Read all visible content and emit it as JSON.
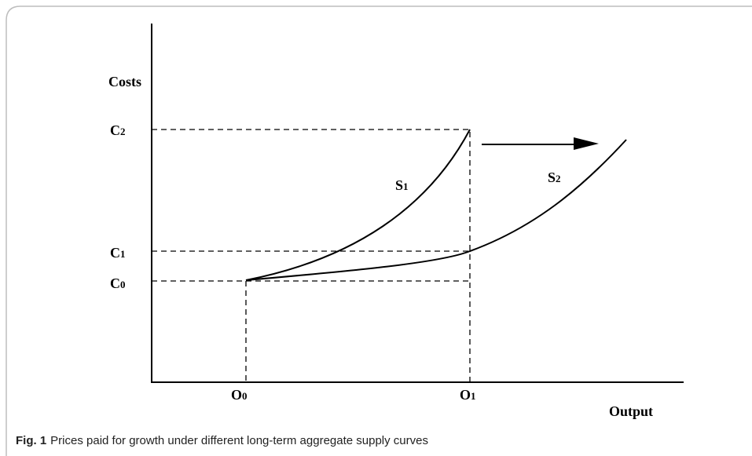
{
  "axis_labels": {
    "y": "Costs",
    "x": "Output"
  },
  "cost_levels": [
    {
      "base": "C",
      "sub": "2"
    },
    {
      "base": "C",
      "sub": "1"
    },
    {
      "base": "C",
      "sub": "0"
    }
  ],
  "output_levels": [
    {
      "base": "O",
      "sub": "0"
    },
    {
      "base": "O",
      "sub": "1"
    }
  ],
  "curves": [
    {
      "base": "S",
      "sub": "1"
    },
    {
      "base": "S",
      "sub": "2"
    }
  ],
  "caption": {
    "label": "Fig. 1",
    "text": "Prices paid for growth under different long-term aggregate supply curves"
  }
}
